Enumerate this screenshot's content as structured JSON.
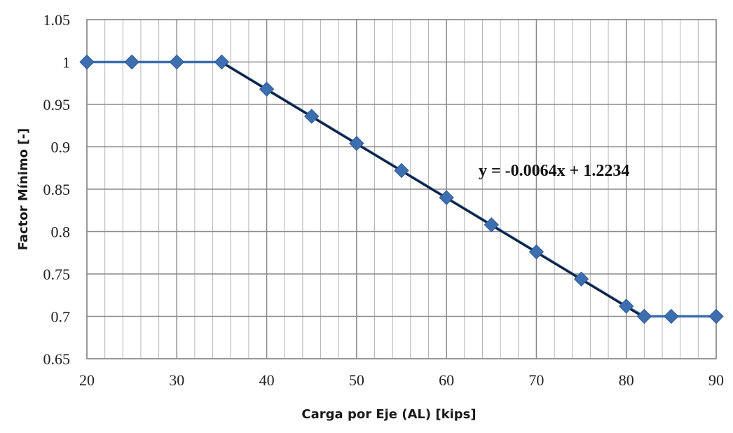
{
  "chart_data": {
    "type": "scatter",
    "xlabel": "Carga por Eje (AL) [kips]",
    "ylabel": "Factor Mínimo [-]",
    "xlim": [
      20,
      90
    ],
    "ylim": [
      0.65,
      1.05
    ],
    "x_ticks": [
      "20",
      "30",
      "40",
      "50",
      "60",
      "70",
      "80",
      "90"
    ],
    "y_ticks": [
      "0.65",
      "0.7",
      "0.75",
      "0.8",
      "0.85",
      "0.9",
      "0.95",
      "1",
      "1.05"
    ],
    "grid": true,
    "series": [
      {
        "marker": "diamond",
        "color": "#3d6fb0",
        "points": [
          [
            20,
            1.0
          ],
          [
            25,
            1.0
          ],
          [
            30,
            1.0
          ],
          [
            35,
            1.0
          ],
          [
            40,
            0.968
          ],
          [
            45,
            0.936
          ],
          [
            50,
            0.904
          ],
          [
            55,
            0.872
          ],
          [
            60,
            0.84
          ],
          [
            65,
            0.808
          ],
          [
            70,
            0.776
          ],
          [
            75,
            0.744
          ],
          [
            80,
            0.712
          ],
          [
            82,
            0.7
          ],
          [
            85,
            0.7
          ],
          [
            90,
            0.7
          ]
        ]
      }
    ],
    "trendline": {
      "equation": "y = -0.0064x + 1.2234",
      "x_range": [
        35,
        82
      ],
      "color": "#0d2240"
    }
  }
}
